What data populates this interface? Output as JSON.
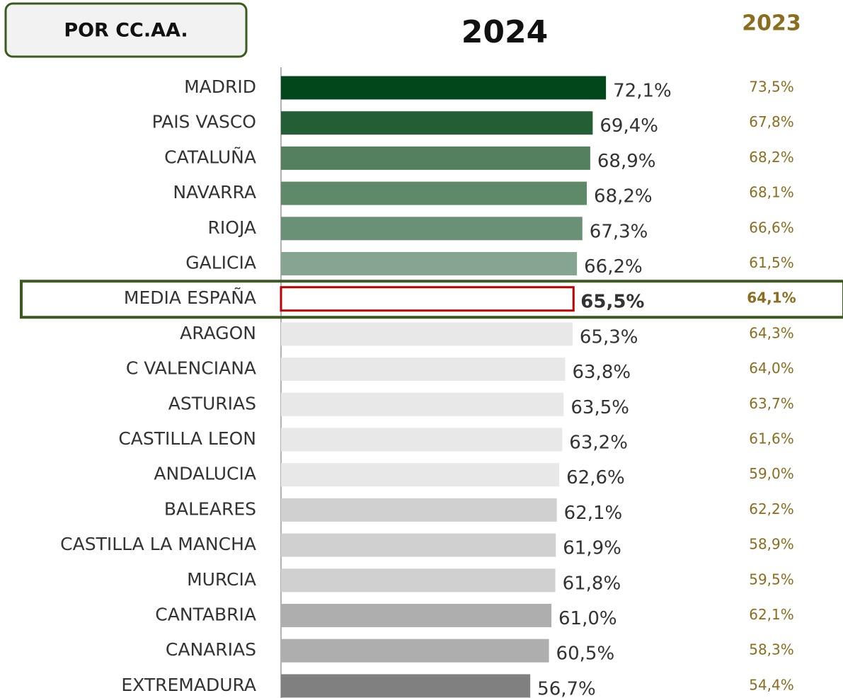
{
  "chart_data": {
    "type": "bar",
    "orientation": "horizontal",
    "header": "POR CC.AA.",
    "categories": [
      "MADRID",
      "PAIS VASCO",
      "CATALUÑA",
      "NAVARRA",
      "RIOJA",
      "GALICIA",
      "MEDIA ESPAÑA",
      "ARAGON",
      "C VALENCIANA",
      "ASTURIAS",
      "CASTILLA LEON",
      "ANDALUCIA",
      "BALEARES",
      "CASTILLA LA MANCHA",
      "MURCIA",
      "CANTABRIA",
      "CANARIAS",
      "EXTREMADURA"
    ],
    "xlim": [
      6,
      80
    ],
    "highlight": 6,
    "series": [
      {
        "name": "2024",
        "values": [
          72.1,
          69.4,
          68.9,
          68.2,
          67.3,
          66.2,
          65.5,
          65.3,
          63.8,
          63.5,
          63.2,
          62.6,
          62.1,
          61.9,
          61.8,
          61.0,
          60.5,
          56.7
        ],
        "value_labels": [
          "72,1%",
          "69,4%",
          "68,9%",
          "68,2%",
          "67,3%",
          "66,2%",
          "65,5%",
          "65,3%",
          "63,8%",
          "63,5%",
          "63,2%",
          "62,6%",
          "62,1%",
          "61,9%",
          "61,8%",
          "61,0%",
          "60,5%",
          "56,7%"
        ],
        "colors": [
          "#00471b",
          "#245e35",
          "#548060",
          "#5e8a6a",
          "#6a9076",
          "#85a590",
          "#ffffff",
          "#e8e8e8",
          "#e8e8e8",
          "#e8e8e8",
          "#e8e8e8",
          "#e8e8e8",
          "#d0d0d0",
          "#d0d0d0",
          "#d0d0d0",
          "#aeaeae",
          "#aeaeae",
          "#808080"
        ]
      },
      {
        "name": "2023",
        "color": "#8a6d1f",
        "values": [
          73.5,
          67.8,
          68.2,
          68.1,
          66.6,
          61.5,
          64.1,
          64.3,
          64.0,
          63.7,
          61.6,
          59.0,
          62.2,
          58.9,
          59.5,
          62.1,
          58.3,
          54.4
        ],
        "value_labels": [
          "73,5%",
          "67,8%",
          "68,2%",
          "68,1%",
          "66,6%",
          "61,5%",
          "64,1%",
          "64,3%",
          "64,0%",
          "63,7%",
          "61,6%",
          "59,0%",
          "62,2%",
          "58,9%",
          "59,5%",
          "62,1%",
          "58,3%",
          "54,4%"
        ]
      }
    ]
  }
}
